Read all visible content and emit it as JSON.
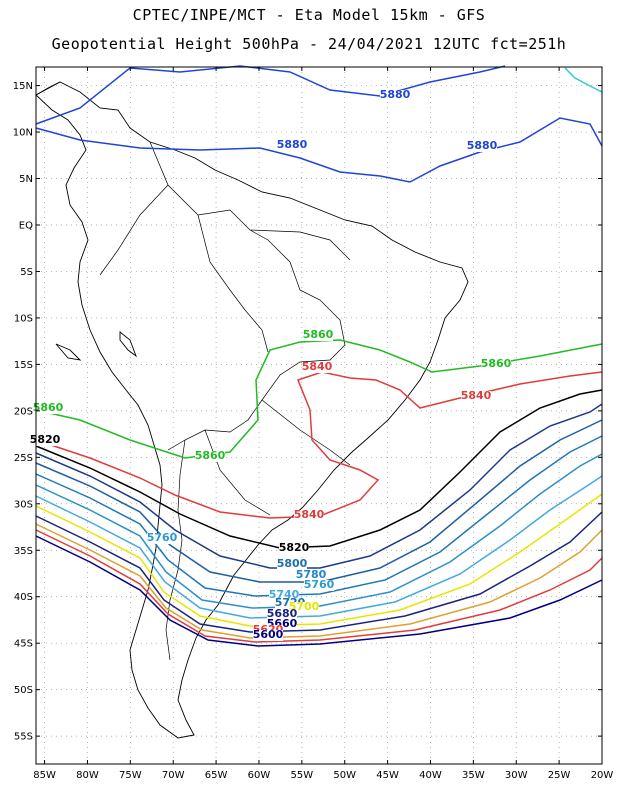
{
  "title": {
    "line1": "CPTEC/INPE/MCT -  Eta Model 15km - GFS",
    "line2": "Geopotential Height 500hPa - 24/04/2021 12UTC fct=251h"
  },
  "axes": {
    "lat_labels": [
      "15N",
      "10N",
      "5N",
      "EQ",
      "5S",
      "10S",
      "15S",
      "20S",
      "25S",
      "30S",
      "35S",
      "40S",
      "45S",
      "50S",
      "55S"
    ],
    "lon_labels": [
      "85W",
      "80W",
      "75W",
      "70W",
      "65W",
      "60W",
      "55W",
      "50W",
      "45W",
      "40W",
      "35W",
      "30W",
      "25W",
      "20W"
    ]
  },
  "map_extent": {
    "lon_min": -86,
    "lon_max": -20,
    "lat_min": -58,
    "lat_max": 17
  },
  "contour_labels": [
    {
      "text": "5880",
      "color": "#1f45d6"
    },
    {
      "text": "5880",
      "color": "#1f45d6"
    },
    {
      "text": "5880",
      "color": "#1f45d6"
    },
    {
      "text": "5860",
      "color": "#22bb22"
    },
    {
      "text": "5860",
      "color": "#22bb22"
    },
    {
      "text": "5860",
      "color": "#22bb22"
    },
    {
      "text": "5860",
      "color": "#22bb22"
    },
    {
      "text": "5840",
      "color": "#e03c3c"
    },
    {
      "text": "5840",
      "color": "#e03c3c"
    },
    {
      "text": "5840",
      "color": "#e03c3c"
    },
    {
      "text": "5820",
      "color": "#000000"
    },
    {
      "text": "5820",
      "color": "#000000"
    },
    {
      "text": "5800",
      "color": "#1e6fa8"
    },
    {
      "text": "5780",
      "color": "#1e88c8"
    },
    {
      "text": "5760",
      "color": "#2a9ad0"
    },
    {
      "text": "5760",
      "color": "#2a9ad0"
    },
    {
      "text": "5740",
      "color": "#44aadd"
    },
    {
      "text": "5720",
      "color": "#1e6fa8"
    },
    {
      "text": "5700",
      "color": "#e6e600"
    },
    {
      "text": "5680",
      "color": "#1a237e"
    },
    {
      "text": "5660",
      "color": "#000080"
    },
    {
      "text": "5620",
      "color": "#e03c3c"
    },
    {
      "text": "5600",
      "color": "#000080"
    }
  ],
  "colors": {
    "h5880": "#1f45d6",
    "h5860": "#22bb22",
    "h5840": "#e03c3c",
    "h5820": "#000000",
    "band": [
      "#1a3a8a",
      "#1e5fa0",
      "#1e78b8",
      "#2a90c8",
      "#44aadd",
      "#7ec8e8",
      "#e6e600",
      "#e0a030",
      "#e03c3c",
      "#1a237e"
    ],
    "cyan": "#33cccc"
  }
}
